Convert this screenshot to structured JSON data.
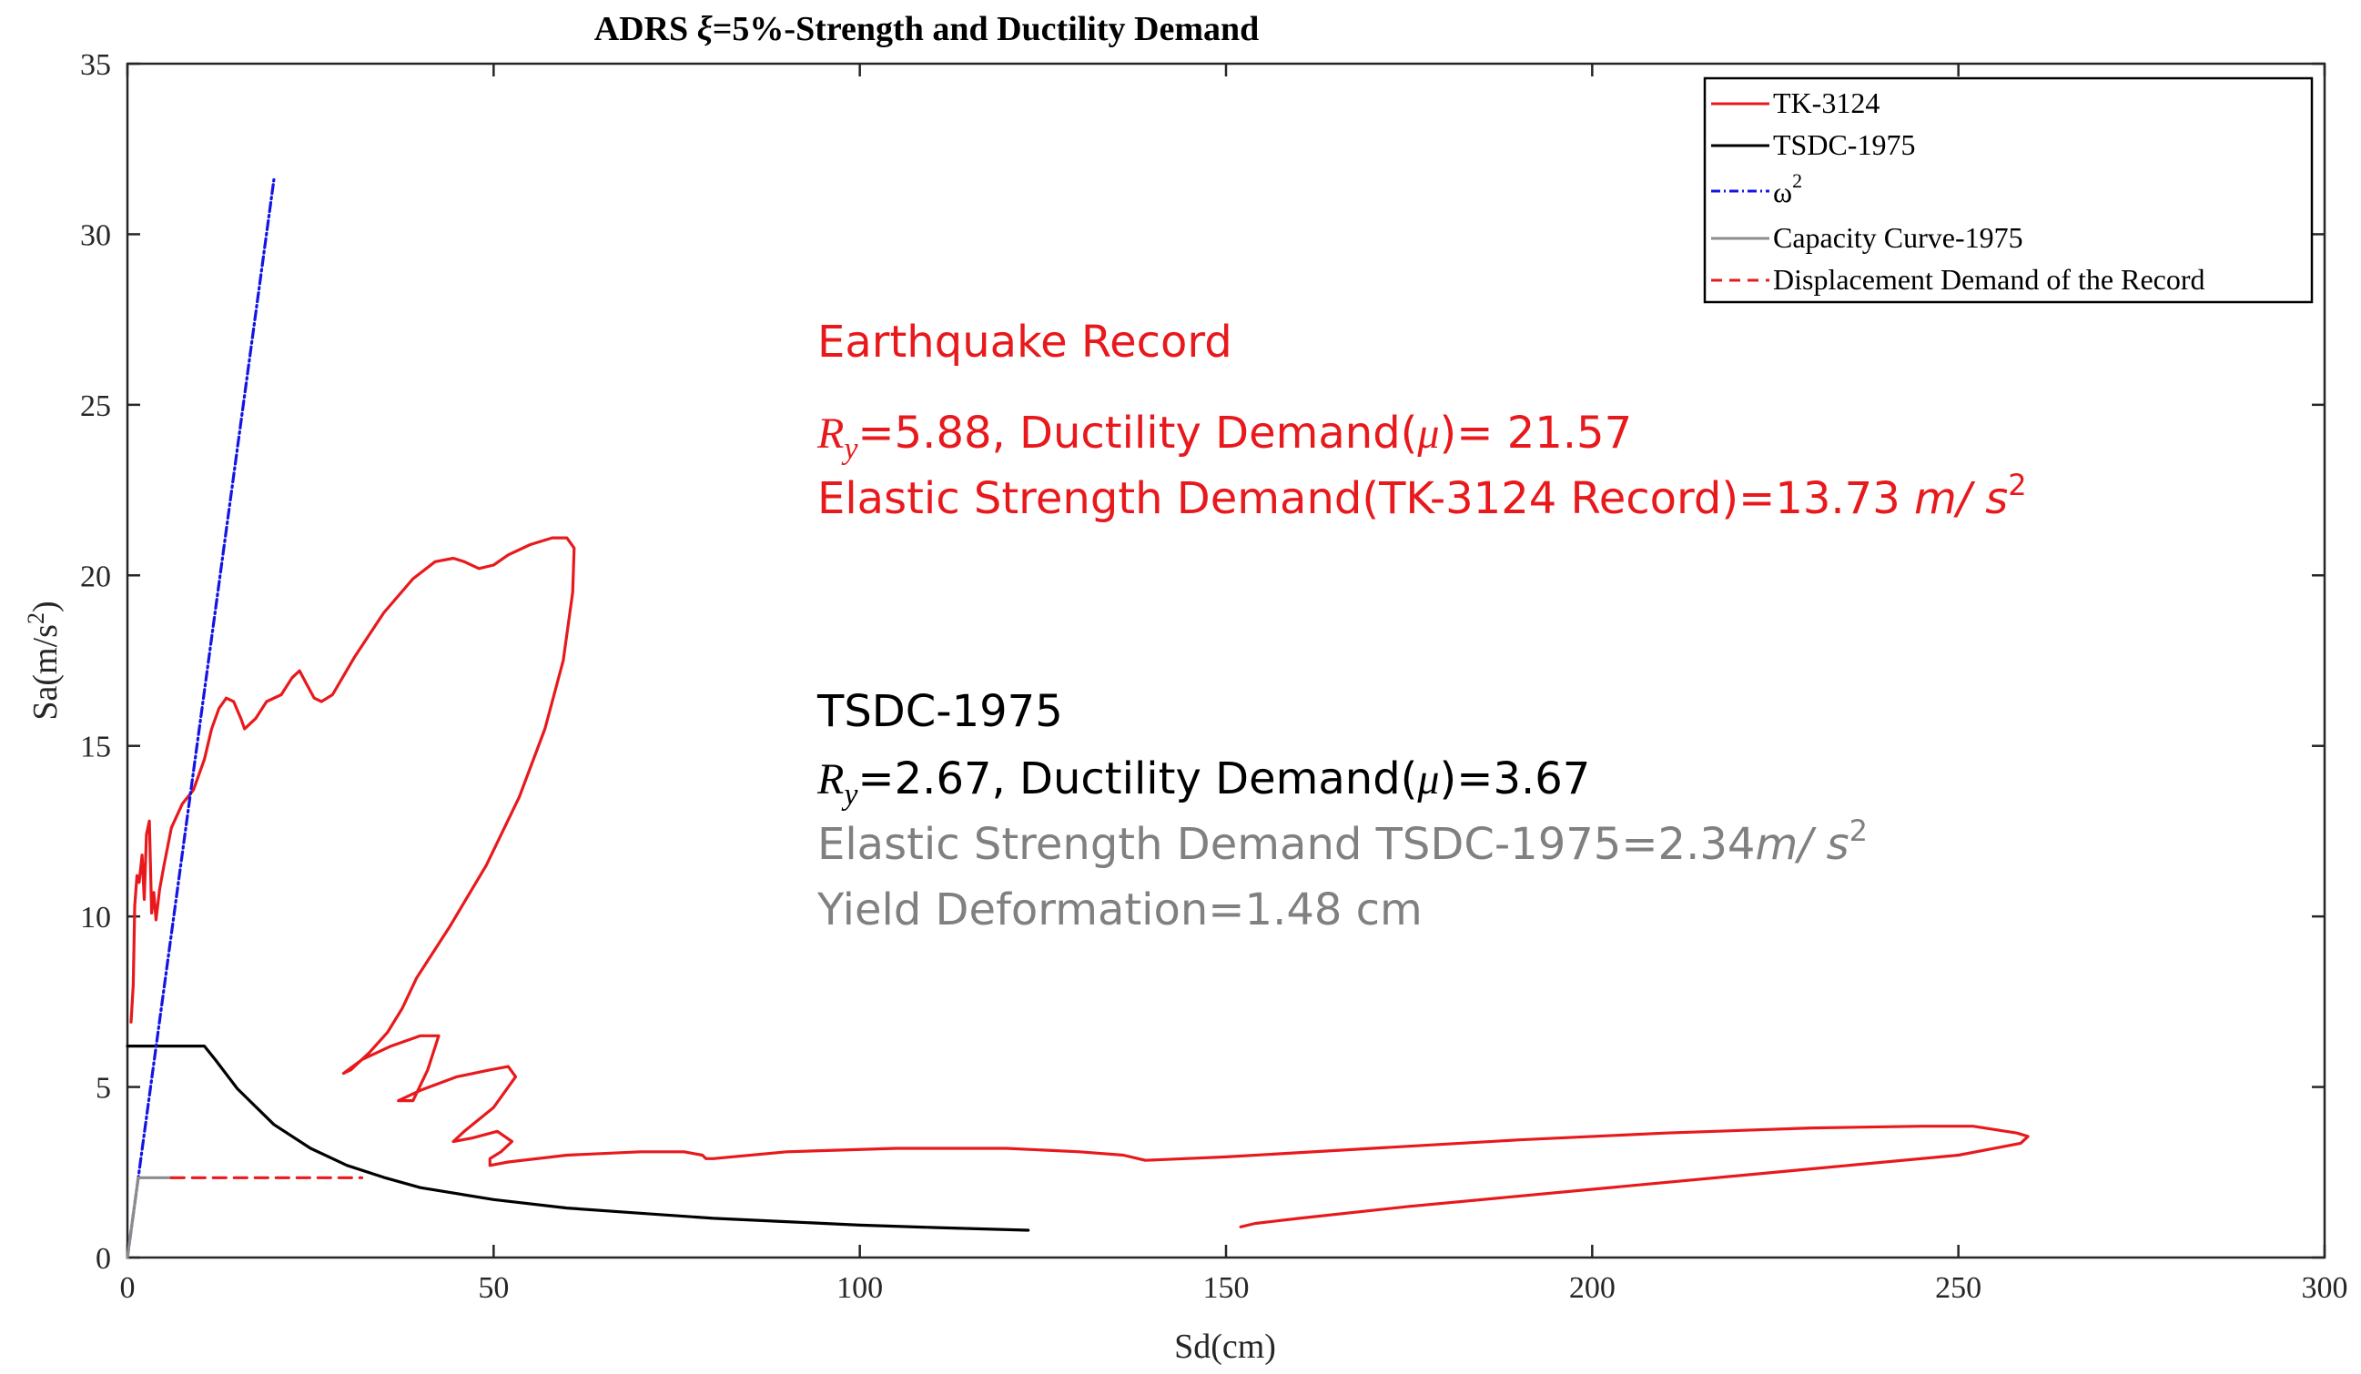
{
  "chart_data": {
    "type": "line",
    "title": "ADRS ξ=5%-Strength and Ductility Demand",
    "xlabel": "Sd(cm)",
    "ylabel": "Sa(m/s²)",
    "xlim": [
      0,
      300
    ],
    "ylim": [
      0,
      35
    ],
    "xticks": [
      0,
      50,
      100,
      150,
      200,
      250,
      300
    ],
    "yticks": [
      0,
      5,
      10,
      15,
      20,
      25,
      30,
      35
    ],
    "grid": false,
    "legend_position": "top-right",
    "series": [
      {
        "name": "TK-3124",
        "color": "#e8191c",
        "style": "solid",
        "x": [
          0.5,
          0.8,
          1.0,
          1.3,
          1.6,
          2.0,
          2.3,
          2.6,
          3.0,
          3.3,
          3.6,
          3.9,
          4.4,
          5.0,
          6.0,
          7.5,
          9.0,
          10.5,
          11.5,
          12.5,
          13.5,
          14.5,
          15.5,
          16.0,
          16.5,
          17.5,
          19.0,
          21.0,
          22.5,
          23.5,
          24.5,
          25.5,
          26.5,
          28.0,
          31.0,
          35.0,
          39.0,
          42.0,
          44.5,
          46.0,
          48.0,
          50.0,
          52.0,
          55.0,
          58.0,
          60.0,
          61.0,
          60.8,
          59.5,
          57.0,
          53.5,
          49.0,
          44.0,
          39.5,
          37.5,
          35.5,
          33.0,
          30.5,
          29.5,
          32.0,
          36.0,
          40.0,
          42.5,
          41.0,
          39.0,
          37.0,
          40.0,
          45.0,
          49.5,
          52.0,
          53.0,
          50.0,
          46.0,
          44.5,
          47.0,
          50.5,
          52.5,
          51.0,
          49.5,
          49.5,
          52.0,
          60.0,
          70.0,
          76.0,
          78.5,
          79.0,
          80.0,
          90.0,
          105.0,
          120.0,
          130.0,
          136.0,
          138.0,
          139.0,
          150.0,
          170.0,
          190.0,
          210.0,
          230.0,
          245.0,
          252.0,
          255.0,
          258.0,
          259.5,
          258.5,
          250.0,
          230.0,
          200.0,
          175.0,
          160.0,
          154.0,
          152.0
        ],
        "y": [
          6.9,
          8.0,
          10.3,
          11.2,
          11.0,
          11.8,
          10.5,
          12.4,
          12.8,
          10.1,
          10.7,
          9.9,
          10.8,
          11.5,
          12.6,
          13.3,
          13.7,
          14.6,
          15.5,
          16.1,
          16.4,
          16.3,
          15.8,
          15.5,
          15.6,
          15.8,
          16.3,
          16.5,
          17.0,
          17.2,
          16.8,
          16.4,
          16.3,
          16.5,
          17.6,
          18.9,
          19.9,
          20.4,
          20.5,
          20.4,
          20.2,
          20.3,
          20.6,
          20.9,
          21.1,
          21.1,
          20.8,
          19.5,
          17.5,
          15.5,
          13.5,
          11.5,
          9.7,
          8.2,
          7.3,
          6.6,
          6.0,
          5.5,
          5.4,
          5.8,
          6.2,
          6.5,
          6.5,
          5.5,
          4.6,
          4.6,
          4.9,
          5.3,
          5.5,
          5.6,
          5.3,
          4.4,
          3.7,
          3.4,
          3.5,
          3.7,
          3.4,
          3.1,
          2.9,
          2.7,
          2.8,
          3.0,
          3.1,
          3.1,
          3.0,
          2.9,
          2.9,
          3.1,
          3.2,
          3.2,
          3.1,
          3.0,
          2.9,
          2.85,
          2.95,
          3.2,
          3.45,
          3.65,
          3.8,
          3.85,
          3.85,
          3.75,
          3.65,
          3.55,
          3.35,
          3.0,
          2.6,
          2.0,
          1.5,
          1.15,
          1.0,
          0.9
        ]
      },
      {
        "name": "TSDC-1975",
        "color": "#000000",
        "style": "solid",
        "x": [
          0,
          10,
          10.5,
          12,
          15,
          20,
          25,
          30,
          35,
          40,
          50,
          60,
          70,
          80,
          90,
          100,
          110,
          123
        ],
        "y": [
          6.2,
          6.2,
          6.2,
          5.8,
          4.95,
          3.9,
          3.2,
          2.7,
          2.35,
          2.05,
          1.7,
          1.45,
          1.3,
          1.15,
          1.05,
          0.95,
          0.88,
          0.8
        ]
      },
      {
        "name": "ω²",
        "color": "#1414e6",
        "style": "dashdot",
        "x": [
          0,
          20
        ],
        "y": [
          0,
          31.6
        ]
      },
      {
        "name": "Capacity Curve-1975",
        "color": "#8c8c8c",
        "style": "solid",
        "x": [
          0,
          1.48,
          6
        ],
        "y": [
          0,
          2.34,
          2.34
        ]
      },
      {
        "name": "Displacement Demand of the Record",
        "color": "#e8191c",
        "style": "dashed",
        "x": [
          6,
          32
        ],
        "y": [
          2.34,
          2.34
        ]
      }
    ],
    "annotations": [
      {
        "text": "Earthquake Record",
        "color": "#e8191c"
      },
      {
        "text": "Ry=5.88, Ductility Demand(μ)= 21.57",
        "color": "#e8191c"
      },
      {
        "text": "Elastic Strength Demand(TK-3124 Record)=13.73 m/ s²",
        "color": "#e8191c"
      },
      {
        "text": "TSDC-1975",
        "color": "#000000"
      },
      {
        "text": "Ry=2.67, Ductility Demand(μ)=3.67",
        "color": "#000000"
      },
      {
        "text": "Elastic Strength Demand TSDC-1975=2.34m/ s²",
        "color": "#808080"
      },
      {
        "text": "Yield Deformation=1.48 cm",
        "color": "#808080"
      }
    ]
  },
  "text": {
    "title_main": "ADRS ",
    "title_xi": "ξ",
    "title_rest": "=5%-Strength and Ductility Demand",
    "xlabel": "Sd(cm)",
    "ylabel_main": "Sa(m/s",
    "ylabel_sup": "2",
    "ylabel_close": ")",
    "legend_tk": "TK-3124",
    "legend_tsdc": "TSDC-1975",
    "legend_omega": "ω",
    "legend_omega_sup": "2",
    "legend_capacity": "Capacity Curve-1975",
    "legend_displacement": "Displacement Demand of the Record",
    "eq_title": "Earthquake Record",
    "eq_ry_sym": "R",
    "eq_ry_sub": "y",
    "eq_ry_val": "=5.88, Ductility Demand(",
    "eq_mu": "μ",
    "eq_ry_end": ")= 21.57",
    "eq_elastic": "Elastic Strength Demand(TK-3124 Record)=13.73 ",
    "eq_unit": "m/ s",
    "eq_unit_sup": "2",
    "ts_title": "TSDC-1975",
    "ts_ry_sym": "R",
    "ts_ry_sub": "y",
    "ts_ry_val": "=2.67, Ductility Demand(",
    "ts_mu": "μ",
    "ts_ry_end": ")=3.67",
    "ts_elastic": "Elastic Strength Demand TSDC-1975=2.34",
    "ts_unit": "m/ s",
    "ts_unit_sup": "2",
    "ts_yield": "Yield Deformation=1.48 cm"
  }
}
